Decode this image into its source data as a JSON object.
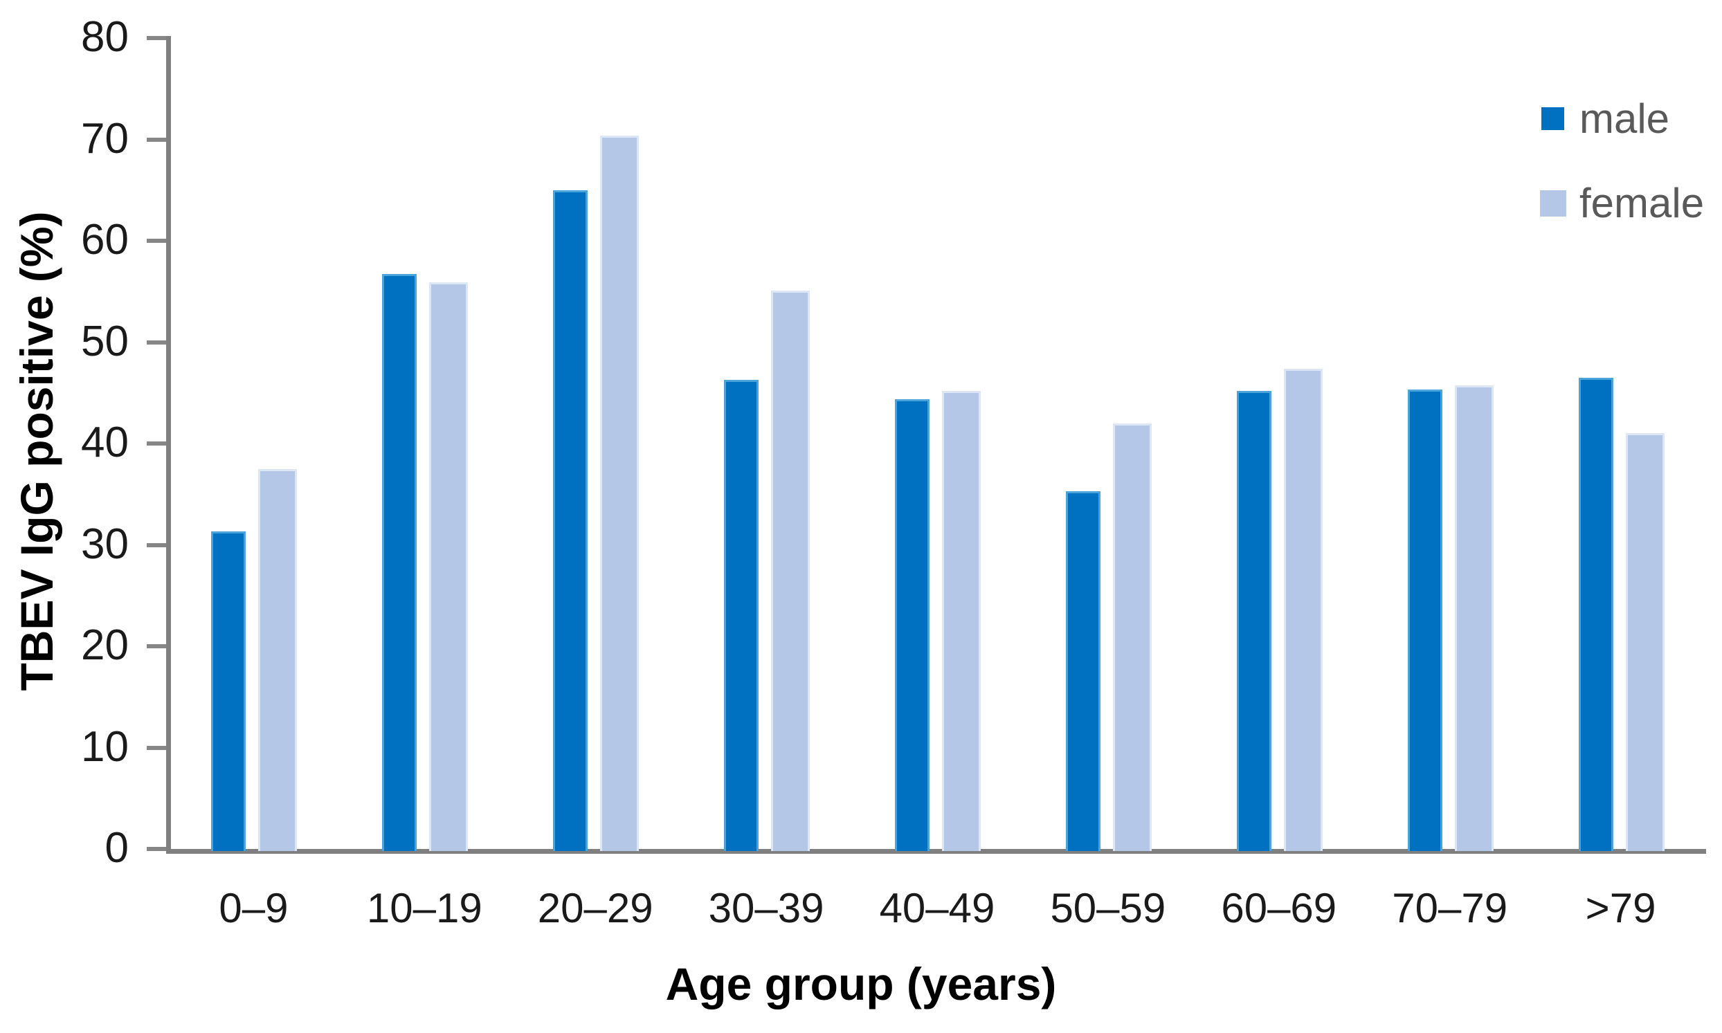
{
  "chart_data": {
    "type": "bar",
    "title": "",
    "xlabel": "Age group (years)",
    "ylabel": "TBEV IgG positive (%)",
    "categories": [
      "0–9",
      "10–19",
      "20–29",
      "30–39",
      "40–49",
      "50–59",
      "60–69",
      "70–79",
      ">79"
    ],
    "series": [
      {
        "name": "male",
        "color": "#0070c0",
        "edge_color": "#4aa3d9",
        "values": [
          31.3,
          56.7,
          65.0,
          46.3,
          44.4,
          35.3,
          45.2,
          45.3,
          46.5
        ]
      },
      {
        "name": "female",
        "color": "#b4c7e7",
        "edge_color": "#dce6f4",
        "values": [
          37.5,
          55.9,
          70.4,
          55.1,
          45.2,
          42.0,
          47.4,
          45.7,
          41.0
        ]
      }
    ],
    "ylim": [
      0,
      80
    ],
    "yticks": [
      0,
      10,
      20,
      30,
      40,
      50,
      60,
      70,
      80
    ],
    "grid": false,
    "legend_position": "top-right",
    "legend_labels": [
      "male",
      "female"
    ],
    "axis_color": "#808080",
    "baseline_color": "#7f7f7f",
    "tick_label_color": "#1a1a1a",
    "legend_text_color": "#595959"
  }
}
